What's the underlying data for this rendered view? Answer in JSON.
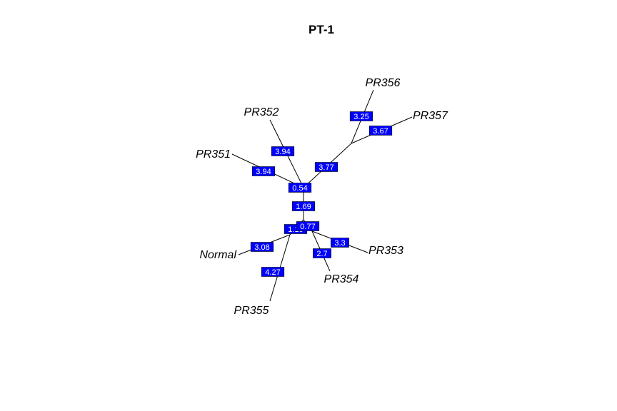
{
  "title": "PT-1",
  "colors": {
    "edge_label_fill": "#0000ff",
    "edge_label_text": "#ffffff",
    "line": "#000000",
    "background": "#ffffff"
  },
  "tree": {
    "tips": [
      "PR356",
      "PR357",
      "PR352",
      "PR351",
      "Normal",
      "PR353",
      "PR354",
      "PR355"
    ],
    "edges": [
      {
        "from": "n-top",
        "to": "PR356",
        "label": "3.25"
      },
      {
        "from": "n-top",
        "to": "PR357",
        "label": "3.67"
      },
      {
        "from": "n-root",
        "to": "n-top",
        "label": "3.77"
      },
      {
        "from": "n-root",
        "to": "PR352",
        "label": "3.94"
      },
      {
        "from": "n-root",
        "to": "PR351",
        "label": "3.94"
      },
      {
        "from": "n-root",
        "to": "n-mid",
        "label": "0.54"
      },
      {
        "from": "n-mid",
        "to": "n-bot",
        "label": "1.69"
      },
      {
        "from": "n-bot",
        "to": "n-left",
        "label": "1.19"
      },
      {
        "from": "n-bot",
        "to": "n-right",
        "label": "0.77"
      },
      {
        "from": "n-left",
        "to": "Normal",
        "label": "3.08"
      },
      {
        "from": "n-left",
        "to": "PR355",
        "label": "4.27"
      },
      {
        "from": "n-right",
        "to": "PR353",
        "label": "3.3"
      },
      {
        "from": "n-right",
        "to": "PR354",
        "label": "2.7"
      }
    ]
  }
}
